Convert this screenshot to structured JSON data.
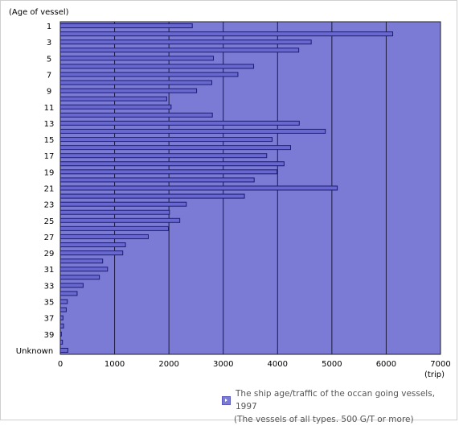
{
  "chart_data": {
    "type": "bar",
    "orientation": "horizontal",
    "ylabel": "(Age of vessel)",
    "xlabel": "(trip)",
    "xlim": [
      0,
      7000
    ],
    "x_ticks": [
      0,
      1000,
      2000,
      3000,
      4000,
      5000,
      6000,
      7000
    ],
    "categories": [
      "1",
      "2",
      "3",
      "4",
      "5",
      "6",
      "7",
      "8",
      "9",
      "10",
      "11",
      "12",
      "13",
      "14",
      "15",
      "16",
      "17",
      "18",
      "19",
      "20",
      "21",
      "22",
      "23",
      "24",
      "25",
      "26",
      "27",
      "28",
      "29",
      "30",
      "31",
      "32",
      "33",
      "34",
      "35",
      "36",
      "37",
      "38",
      "39",
      "40",
      "Unknown"
    ],
    "category_labels_shown": [
      "1",
      "3",
      "5",
      "7",
      "9",
      "11",
      "13",
      "15",
      "17",
      "19",
      "21",
      "23",
      "25",
      "27",
      "29",
      "31",
      "33",
      "35",
      "37",
      "39",
      "Unknown"
    ],
    "values": [
      2430,
      6120,
      4620,
      4390,
      2820,
      3560,
      3270,
      2790,
      2510,
      1960,
      2040,
      2800,
      4400,
      4880,
      3900,
      4240,
      3800,
      4120,
      3990,
      3570,
      5100,
      3390,
      2320,
      2010,
      2200,
      1990,
      1620,
      1200,
      1150,
      780,
      870,
      720,
      420,
      310,
      130,
      110,
      50,
      60,
      20,
      40,
      140
    ],
    "grid": true,
    "legend": "bottom-right",
    "plot_bg_color": "#7b7bd6",
    "bar_color": "#6868d0",
    "bar_edge_color": "#1c1c70"
  },
  "legend": {
    "line1": "The ship age/traffic of the occan going vessels, 1997",
    "line2": "(The vessels of all types. 500 G/T or more)"
  }
}
